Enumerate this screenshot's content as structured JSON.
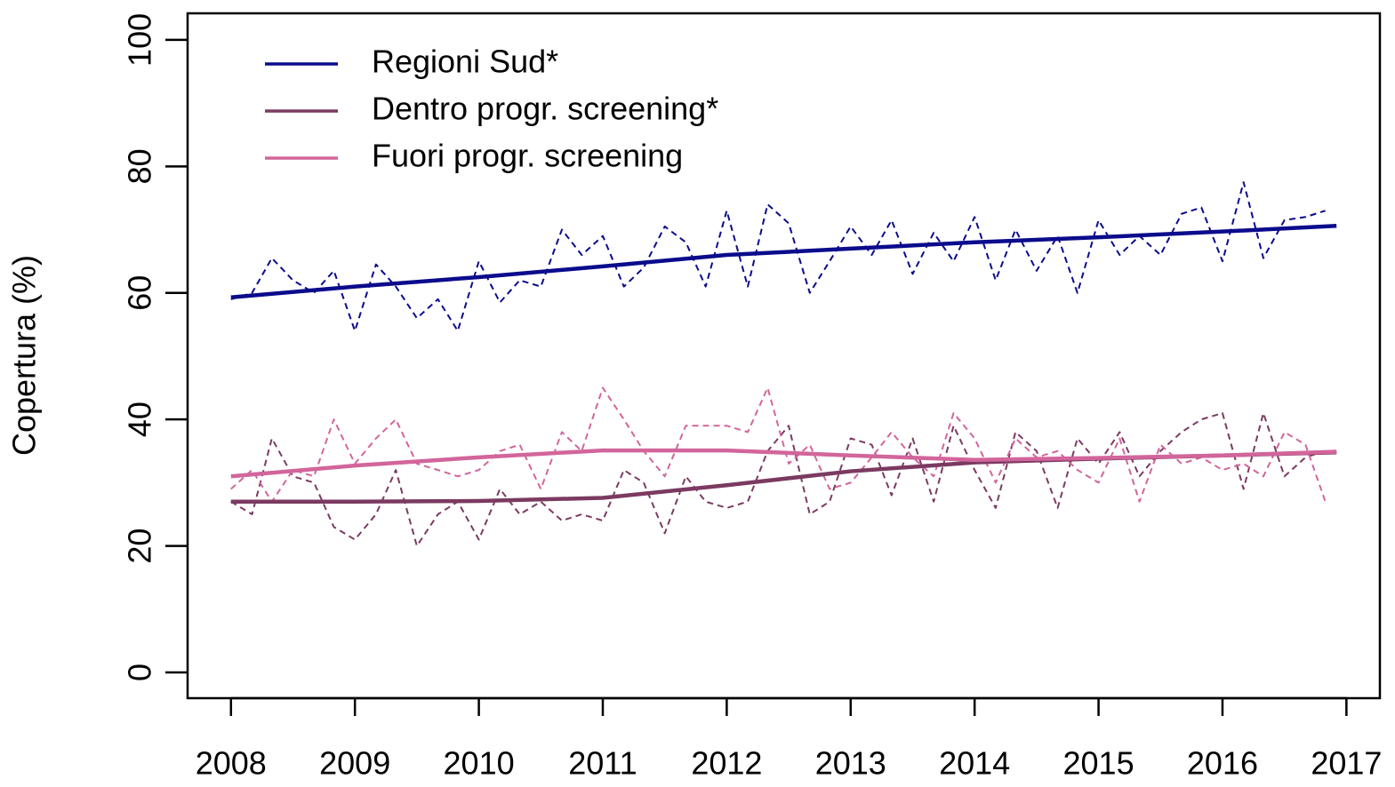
{
  "chart_data": {
    "type": "line",
    "ylabel": "Copertura (%)",
    "xlim": [
      2007.65,
      2017.27
    ],
    "ylim": [
      -4.07,
      104.2
    ],
    "xticks": [
      2008,
      2009,
      2010,
      2011,
      2012,
      2013,
      2014,
      2015,
      2016,
      2017
    ],
    "yticks": [
      0,
      20,
      40,
      60,
      80,
      100
    ],
    "legend": "top-left",
    "x": [
      2008,
      2009,
      2010,
      2011,
      2012,
      2013,
      2014,
      2015,
      2016,
      2016.92
    ],
    "observed_x": [
      2008,
      2008.17,
      2008.33,
      2008.5,
      2008.67,
      2008.83,
      2009,
      2009.17,
      2009.33,
      2009.5,
      2009.67,
      2009.83,
      2010,
      2010.17,
      2010.33,
      2010.5,
      2010.67,
      2010.83,
      2011,
      2011.17,
      2011.33,
      2011.5,
      2011.67,
      2011.83,
      2012,
      2012.17,
      2012.33,
      2012.5,
      2012.67,
      2012.83,
      2013,
      2013.17,
      2013.33,
      2013.5,
      2013.67,
      2013.83,
      2014,
      2014.17,
      2014.33,
      2014.5,
      2014.67,
      2014.83,
      2015,
      2015.17,
      2015.33,
      2015.5,
      2015.67,
      2015.83,
      2016,
      2016.17,
      2016.33,
      2016.5,
      2016.67,
      2016.83
    ],
    "series": [
      {
        "name": "Regioni Sud*",
        "color": "#0b0b8c",
        "values": [
          59.3,
          61,
          62.5,
          64.2,
          66,
          67,
          68,
          68.8,
          69.7,
          70.6
        ],
        "observed": [
          59,
          60,
          65.5,
          62,
          60,
          63.5,
          54,
          64.5,
          61,
          56,
          59,
          54,
          65,
          58.5,
          62,
          61,
          70,
          66,
          69,
          61,
          64,
          70.5,
          68,
          61,
          73,
          61,
          74,
          71,
          60,
          65,
          70.5,
          66,
          71.5,
          63,
          69.5,
          65,
          72,
          62,
          70,
          63.5,
          69,
          60,
          71.5,
          66,
          69,
          66,
          72.5,
          73.5,
          65,
          77.5,
          65.5,
          71.5,
          72,
          73
        ]
      },
      {
        "name": "Dentro progr. screening*",
        "color": "#7b3a62",
        "values": [
          27,
          27,
          27.1,
          27.6,
          29.6,
          31.8,
          33.2,
          33.8,
          34.3,
          34.8
        ],
        "observed": [
          27,
          25,
          37,
          31,
          30,
          23,
          21,
          25,
          32,
          20,
          25,
          27,
          21,
          29,
          25,
          27,
          24,
          25,
          24,
          32,
          30,
          22,
          31,
          27,
          26,
          27,
          35,
          39,
          25,
          27,
          37,
          36,
          28,
          37,
          27,
          39,
          32,
          26,
          38,
          35,
          26,
          37,
          33,
          38,
          31,
          35,
          38,
          40,
          41,
          29,
          41,
          31,
          34,
          35
        ]
      },
      {
        "name": "Fuori progr. screening",
        "color": "#d2659c",
        "values": [
          31,
          32.7,
          34,
          35.1,
          35.1,
          34.3,
          33.6,
          33.9,
          34.3,
          34.9
        ],
        "observed": [
          29,
          32,
          27,
          32,
          31,
          40,
          33,
          37,
          40,
          33,
          32,
          31,
          32,
          35,
          36,
          29,
          38,
          35,
          45,
          40,
          35,
          31,
          39,
          39,
          39,
          38,
          45,
          33,
          36,
          29,
          30,
          34,
          38,
          34,
          31,
          41,
          37,
          30,
          37,
          34,
          35,
          32,
          30,
          37,
          27,
          36,
          33,
          34,
          32,
          33,
          31,
          38,
          36,
          27
        ]
      }
    ]
  }
}
